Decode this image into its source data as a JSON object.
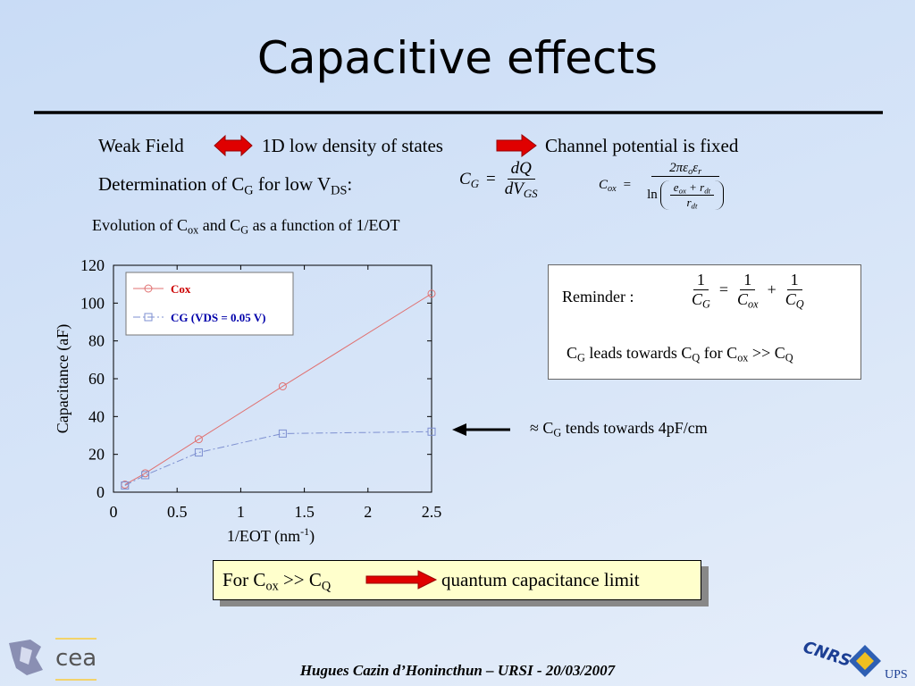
{
  "slide": {
    "title": "Capacitive effects",
    "row1": [
      "Weak Field",
      "1D low density of states",
      "Channel potential is fixed"
    ],
    "row2": [
      "Determination of C",
      "G",
      " for low V",
      "DS",
      ":"
    ],
    "eq_cg": {
      "lhs": [
        "C",
        "G"
      ],
      "eq": "=",
      "num": [
        "dQ"
      ],
      "den": [
        "dV",
        "GS"
      ]
    },
    "eq_cox": {
      "lhs": [
        "C",
        "ox"
      ],
      "eq": "=",
      "num": [
        "2πε",
        "o",
        "ε",
        "r"
      ],
      "ln": "ln",
      "inner_num": [
        "e",
        "ox",
        " + r",
        "dt"
      ],
      "inner_den": [
        "r",
        "dt"
      ]
    },
    "caption": [
      "Evolution of C",
      "ox",
      " and C",
      "G",
      " as a function of 1/EOT"
    ],
    "reminder": {
      "label": "Reminder :",
      "lhs_num": [
        "1"
      ],
      "lhs_den": [
        "C",
        "G"
      ],
      "eq": "=",
      "a_num": [
        "1"
      ],
      "a_den": [
        "C",
        "ox"
      ],
      "plus": "+",
      "b_num": [
        "1"
      ],
      "b_den": [
        "C",
        "Q"
      ],
      "note": [
        "C",
        "G",
        " leads towards C",
        "Q",
        " for C",
        "ox",
        " >> C",
        "Q"
      ]
    },
    "arrow_note": [
      "≈ C",
      "G",
      " tends towards 4pF/cm"
    ],
    "limit": {
      "left": [
        "For C",
        "ox",
        " >> C",
        "Q"
      ],
      "right": "quantum capacitance limit"
    },
    "footer": "Hugues Cazin d’Honincthun – URSI - 20/03/2007",
    "logos": {
      "cea": "cea",
      "cnrs": "CNRS",
      "ups": "UPS"
    }
  },
  "chart_data": {
    "type": "line",
    "xlabel": [
      "1/EOT (nm",
      "-1",
      ")"
    ],
    "ylabel": "Capacitance (aF)",
    "x": [
      0.09,
      0.25,
      0.67,
      1.33,
      2.5
    ],
    "series": [
      {
        "name": "Cox",
        "color": "#e07070",
        "label_color": "#cc0000",
        "marker": "circle",
        "dash": "none",
        "values": [
          4,
          10,
          28,
          56,
          105
        ]
      },
      {
        "name": "CG (VDS = 0.05 V)",
        "color": "#7d8fd0",
        "label_color": "#0000aa",
        "marker": "square",
        "dash": "8 3 2 3",
        "values": [
          3.5,
          9,
          21,
          31,
          32
        ]
      }
    ],
    "xlim": [
      0,
      2.5
    ],
    "xticks": [
      0,
      0.5,
      1,
      1.5,
      2,
      2.5
    ],
    "ylim": [
      0,
      120
    ],
    "yticks": [
      0,
      20,
      40,
      60,
      80,
      100,
      120
    ],
    "grid": false,
    "legend": "top-left"
  }
}
